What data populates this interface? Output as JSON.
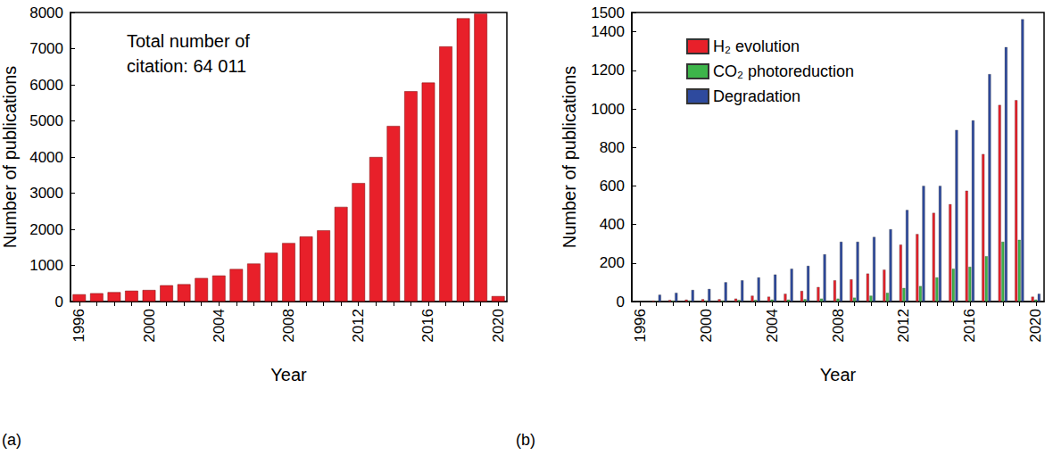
{
  "chart_data": [
    {
      "type": "bar",
      "label": "(a)",
      "x_label": "Year",
      "y_label": "Number of publications",
      "annotation": "Total number of citation: 64 011",
      "categories": [
        "1996",
        null,
        null,
        null,
        "2000",
        null,
        null,
        null,
        "2004",
        null,
        null,
        null,
        "2008",
        null,
        null,
        null,
        "2012",
        null,
        null,
        null,
        "2016",
        null,
        null,
        null,
        "2020"
      ],
      "values": [
        200,
        230,
        260,
        300,
        320,
        450,
        480,
        650,
        720,
        900,
        1050,
        1350,
        1620,
        1800,
        1970,
        2620,
        3280,
        4000,
        4860,
        5820,
        6060,
        7060,
        7840,
        7970,
        150
      ],
      "color": "#e8202a",
      "ylim": [
        0,
        8000
      ],
      "yticks": [
        0,
        1000,
        2000,
        3000,
        4000,
        5000,
        6000,
        7000,
        8000
      ]
    },
    {
      "type": "bar",
      "label": "(b)",
      "x_label": "Year",
      "y_label": "Number of publications",
      "legend": "upper left",
      "categories": [
        "1996",
        null,
        null,
        null,
        "2000",
        null,
        null,
        null,
        "2004",
        null,
        null,
        null,
        "2008",
        null,
        null,
        null,
        "2012",
        null,
        null,
        null,
        "2016",
        null,
        null,
        null,
        "2020"
      ],
      "series": [
        {
          "name": "H₂ evolution",
          "color": "#e8202a",
          "values": [
            null,
            5,
            8,
            10,
            12,
            12,
            15,
            30,
            25,
            40,
            55,
            75,
            110,
            115,
            145,
            165,
            295,
            350,
            460,
            505,
            575,
            765,
            1020,
            1045,
            25
          ]
        },
        {
          "name": "CO₂ photoreduction",
          "color": "#3db54a",
          "values": [
            null,
            3,
            5,
            5,
            5,
            5,
            8,
            8,
            10,
            10,
            12,
            15,
            15,
            20,
            30,
            45,
            70,
            80,
            125,
            170,
            180,
            235,
            310,
            320,
            10
          ]
        },
        {
          "name": "Degradation",
          "color": "#2e4a9e",
          "values": [
            null,
            35,
            45,
            60,
            65,
            100,
            110,
            125,
            140,
            170,
            185,
            245,
            310,
            310,
            335,
            375,
            475,
            600,
            600,
            890,
            940,
            1180,
            1320,
            1465,
            40
          ]
        }
      ],
      "ylim": [
        0,
        1500
      ],
      "yticks": [
        0,
        200,
        400,
        600,
        800,
        1000,
        1200,
        1400
      ]
    }
  ]
}
